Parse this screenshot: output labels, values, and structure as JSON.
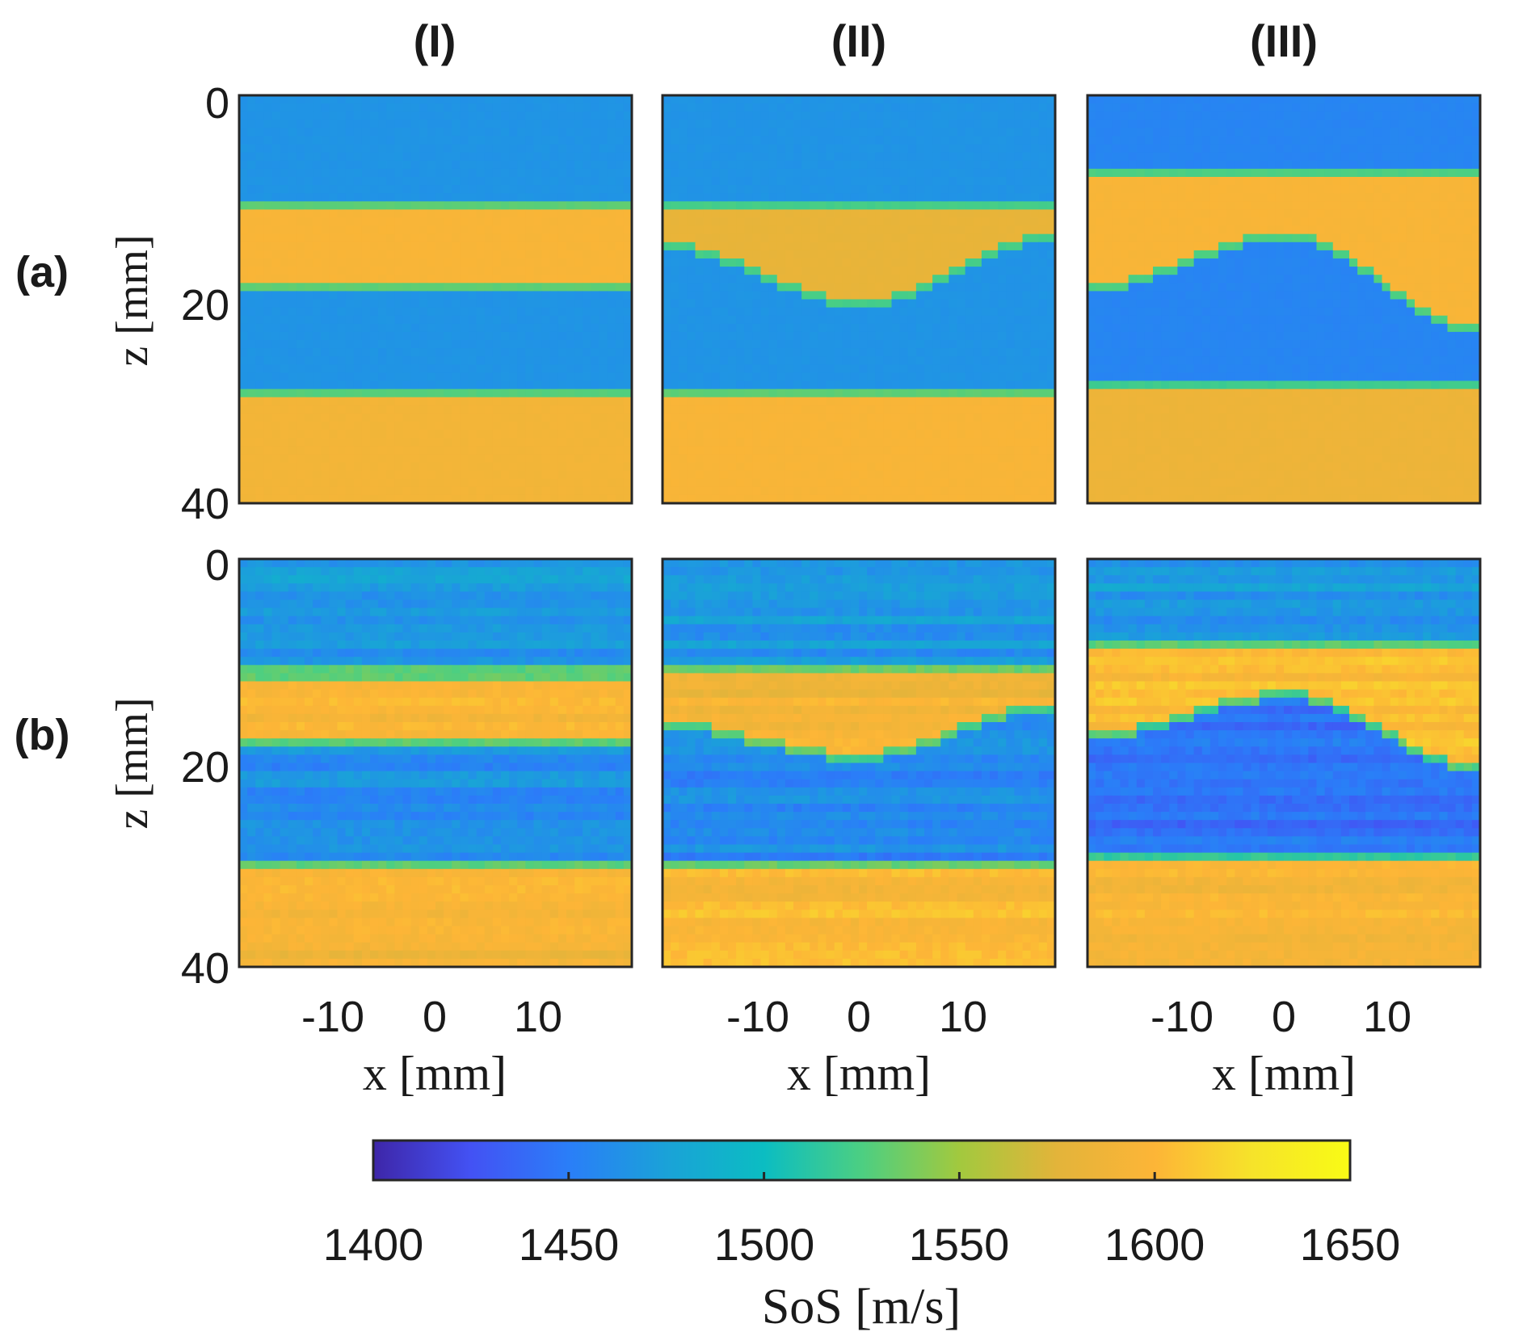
{
  "chart_data": {
    "type": "heatmap",
    "columns": [
      "(I)",
      "(II)",
      "(III)"
    ],
    "rows": [
      "(a)",
      "(b)"
    ],
    "xlabel": "x [mm]",
    "ylabel": "z [mm]",
    "xlim": [
      -19.2,
      19.2
    ],
    "ylim": [
      0,
      40
    ],
    "xticks": [
      -10,
      0,
      10
    ],
    "yticks": [
      0,
      20,
      40
    ],
    "colorbar": {
      "label": "SoS [m/s]",
      "range": [
        1400,
        1650
      ],
      "ticks": [
        1400,
        1450,
        1500,
        1550,
        1600,
        1650
      ],
      "colormap": [
        "#3e26a8",
        "#4352f4",
        "#2a7ef8",
        "#1aa2d8",
        "#0bbdc2",
        "#4ccf82",
        "#a2c93e",
        "#e3b43a",
        "#fdb537",
        "#f6e32a",
        "#f9fb15"
      ]
    },
    "panels": [
      {
        "id": "a-I",
        "row": "(a)",
        "col": "(I)",
        "layers": [
          {
            "z_top": [
              0,
              0
            ],
            "sos": 1465
          },
          {
            "z_top": [
              10.5,
              10.5
            ],
            "sos": 1595
          },
          {
            "z_top": [
              18.2,
              18.2
            ],
            "sos": 1465
          },
          {
            "z_top": [
              28.6,
              28.6
            ],
            "sos": 1590
          }
        ]
      },
      {
        "id": "a-II",
        "row": "(a)",
        "col": "(II)",
        "layers": [
          {
            "z_top": [
              0,
              0
            ],
            "sos": 1465
          },
          {
            "z_top": [
              10.5,
              10.5
            ],
            "sos": 1580
          },
          {
            "z_top": [
              14.5,
              20,
              13.5
            ],
            "sos": 1465
          },
          {
            "z_top": [
              29.2,
              29.2
            ],
            "sos": 1595
          }
        ]
      },
      {
        "id": "a-III",
        "row": "(a)",
        "col": "(III)",
        "layers": [
          {
            "z_top": [
              0,
              0
            ],
            "sos": 1455
          },
          {
            "z_top": [
              7.5,
              7.5
            ],
            "sos": 1595
          },
          {
            "z_top": [
              18.5,
              13.5,
              22.5
            ],
            "sos": 1455
          },
          {
            "z_top": [
              28.0,
              28.0
            ],
            "sos": 1585
          }
        ]
      },
      {
        "id": "b-I",
        "row": "(b)",
        "col": "(I)",
        "layers": [
          {
            "z_top": [
              0,
              0
            ],
            "sos": 1470
          },
          {
            "z_top": [
              10.8,
              10.8
            ],
            "sos": 1600
          },
          {
            "z_top": [
              17.5,
              17.5
            ],
            "sos": 1462
          },
          {
            "z_top": [
              29.5,
              29.5
            ],
            "sos": 1592
          }
        ]
      },
      {
        "id": "b-II",
        "row": "(b)",
        "col": "(II)",
        "layers": [
          {
            "z_top": [
              0,
              0
            ],
            "sos": 1468
          },
          {
            "z_top": [
              10.5,
              10.5
            ],
            "sos": 1590
          },
          {
            "z_top": [
              16.0,
              19.0,
              14.0
            ],
            "sos": 1458
          },
          {
            "z_top": [
              29.5,
              29.5
            ],
            "sos": 1598
          }
        ]
      },
      {
        "id": "b-III",
        "row": "(b)",
        "col": "(III)",
        "layers": [
          {
            "z_top": [
              0,
              0
            ],
            "sos": 1468
          },
          {
            "z_top": [
              8.0,
              8.0
            ],
            "sos": 1605
          },
          {
            "z_top": [
              17.0,
              13.0,
              20.0
            ],
            "sos": 1445
          },
          {
            "z_top": [
              28.8,
              28.8
            ],
            "sos": 1598
          }
        ]
      }
    ]
  }
}
